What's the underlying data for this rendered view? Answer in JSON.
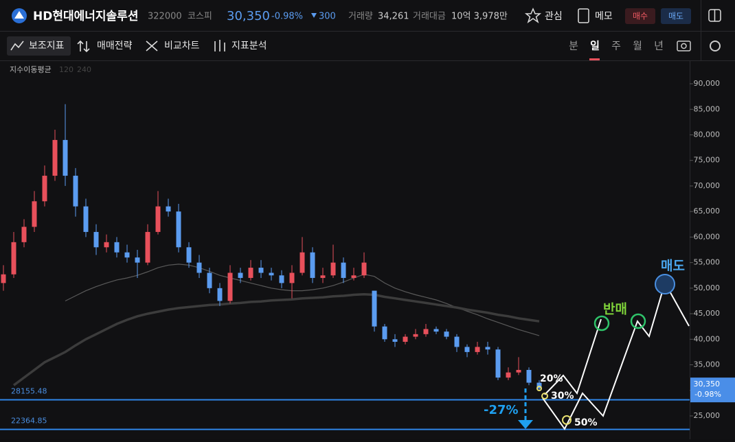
{
  "header": {
    "name": "HD현대에너지솔루션",
    "code": "322000",
    "market": "코스피",
    "price": "30,350",
    "change_pct": "-0.98%",
    "change": "300",
    "volume_label": "거래량",
    "volume": "34,261",
    "amount_label": "거래대금",
    "amount": "10억 3,978만",
    "watch": "관심",
    "memo": "메모",
    "buy": "매수",
    "sell": "매도"
  },
  "toolbar": {
    "tools": [
      "보조지표",
      "매매전략",
      "비교차트",
      "지표분석"
    ],
    "periods": [
      "분",
      "일",
      "주",
      "월",
      "년"
    ],
    "active_period": 1
  },
  "chart_data": {
    "type": "candlestick",
    "indicator": "지수이동평균",
    "ylim": [
      20700,
      94570
    ],
    "yticks": [
      {
        "value": 25000,
        "label": "25,000"
      },
      {
        "value": 30000,
        "label": "30,000"
      },
      {
        "value": 35000,
        "label": "35,000"
      },
      {
        "value": 40000,
        "label": "40,000"
      },
      {
        "value": 45000,
        "label": "45,000"
      },
      {
        "value": 50000,
        "label": "50,000"
      },
      {
        "value": 55000,
        "label": "55,000"
      },
      {
        "value": 60000,
        "label": "60,000"
      },
      {
        "value": 65000,
        "label": "65,000"
      },
      {
        "value": 70000,
        "label": "70,000"
      },
      {
        "value": 75000,
        "label": "75,000"
      },
      {
        "value": 80000,
        "label": "80,000"
      },
      {
        "value": 85000,
        "label": "85,000"
      },
      {
        "value": 90000,
        "label": "90,000"
      }
    ],
    "up_color": "#e8505b",
    "down_color": "#5b9cf0",
    "open": [
      51000,
      52700,
      59000,
      62000,
      67000,
      72000,
      79000,
      72000,
      66000,
      61000,
      58000,
      59000,
      57000,
      56000,
      55000,
      61000,
      66000,
      65000,
      58000,
      55000,
      53000,
      50000,
      47500,
      53000,
      52000,
      54000,
      53000,
      52500,
      51000,
      53000,
      57000,
      52000,
      52500,
      55000,
      52000,
      52500,
      49500,
      42500,
      40000,
      39500,
      40500,
      41000,
      42000,
      41500,
      40500,
      38500,
      37500,
      38500,
      38000,
      32500,
      33500,
      34000,
      31500
    ],
    "high": [
      54500,
      61000,
      63500,
      69000,
      74000,
      81000,
      86000,
      73500,
      67500,
      62500,
      60500,
      60000,
      58500,
      57500,
      62500,
      69000,
      67500,
      66500,
      59000,
      56500,
      54000,
      51000,
      54500,
      54000,
      55500,
      55500,
      54000,
      53500,
      54500,
      60000,
      58000,
      54000,
      58500,
      56000,
      54000,
      57000,
      49500,
      43000,
      41000,
      41000,
      42000,
      43000,
      42500,
      42000,
      41000,
      39000,
      39500,
      39500,
      38500,
      34500,
      36500,
      34500,
      32000
    ],
    "low": [
      49500,
      52000,
      58000,
      61000,
      66000,
      71000,
      70000,
      64000,
      60000,
      56500,
      57000,
      56000,
      55000,
      52000,
      54500,
      60500,
      64000,
      57000,
      54000,
      52000,
      49000,
      46500,
      47000,
      51000,
      51500,
      52000,
      51500,
      50000,
      48000,
      52500,
      51000,
      51000,
      52000,
      51000,
      51500,
      52000,
      41500,
      39500,
      38500,
      39000,
      40000,
      40500,
      41000,
      40000,
      37500,
      36500,
      37000,
      37000,
      32000,
      32000,
      33000,
      31000,
      30000
    ],
    "close": [
      52700,
      59000,
      62000,
      67000,
      72000,
      79000,
      72000,
      66000,
      61000,
      58000,
      59000,
      57000,
      56000,
      55000,
      61000,
      66000,
      65000,
      58000,
      55000,
      53000,
      50000,
      47500,
      53000,
      52000,
      54000,
      53000,
      52500,
      51000,
      53000,
      57000,
      52000,
      52500,
      55000,
      52000,
      52500,
      55000,
      42500,
      40000,
      39500,
      40500,
      41000,
      42000,
      41500,
      40500,
      38500,
      37500,
      38500,
      38000,
      32500,
      33500,
      34000,
      31500,
      30350
    ],
    "series": [
      {
        "name": "120",
        "color": "#5a5a5a",
        "width": 1.2,
        "values": [
          null,
          null,
          null,
          null,
          null,
          null,
          47500,
          48500,
          49500,
          50300,
          51000,
          51600,
          52000,
          52500,
          53200,
          54000,
          54500,
          54700,
          54500,
          54000,
          53300,
          52500,
          52000,
          51500,
          51000,
          50500,
          50000,
          49700,
          49500,
          49500,
          49700,
          50000,
          50500,
          51200,
          52000,
          52700,
          52300,
          51000,
          50000,
          49300,
          48700,
          48200,
          47700,
          47000,
          46200,
          45500,
          44800,
          44000,
          43300,
          42600,
          41900,
          41300,
          40700
        ]
      },
      {
        "name": "240",
        "color": "#3c3c3c",
        "width": 3.5,
        "values": [
          null,
          31000,
          32500,
          34000,
          35500,
          36500,
          37500,
          38800,
          40000,
          41000,
          42000,
          43000,
          43800,
          44500,
          45000,
          45400,
          45800,
          46100,
          46300,
          46500,
          46700,
          46800,
          47000,
          47100,
          47300,
          47400,
          47600,
          47700,
          47800,
          48000,
          48100,
          48200,
          48400,
          48500,
          48700,
          48800,
          48700,
          48300,
          48000,
          47700,
          47400,
          47100,
          46800,
          46500,
          46200,
          45800,
          45500,
          45200,
          44800,
          44500,
          44100,
          43800,
          43500
        ]
      }
    ],
    "levels": [
      28155.48,
      22364.85
    ],
    "level_color": "#2f86e8",
    "last_price": {
      "label": "30,350",
      "change": "-0.98%",
      "value": 30350
    },
    "annotations": [
      "-27%",
      "20%",
      "30%",
      "50%",
      "반매",
      "매도"
    ]
  }
}
